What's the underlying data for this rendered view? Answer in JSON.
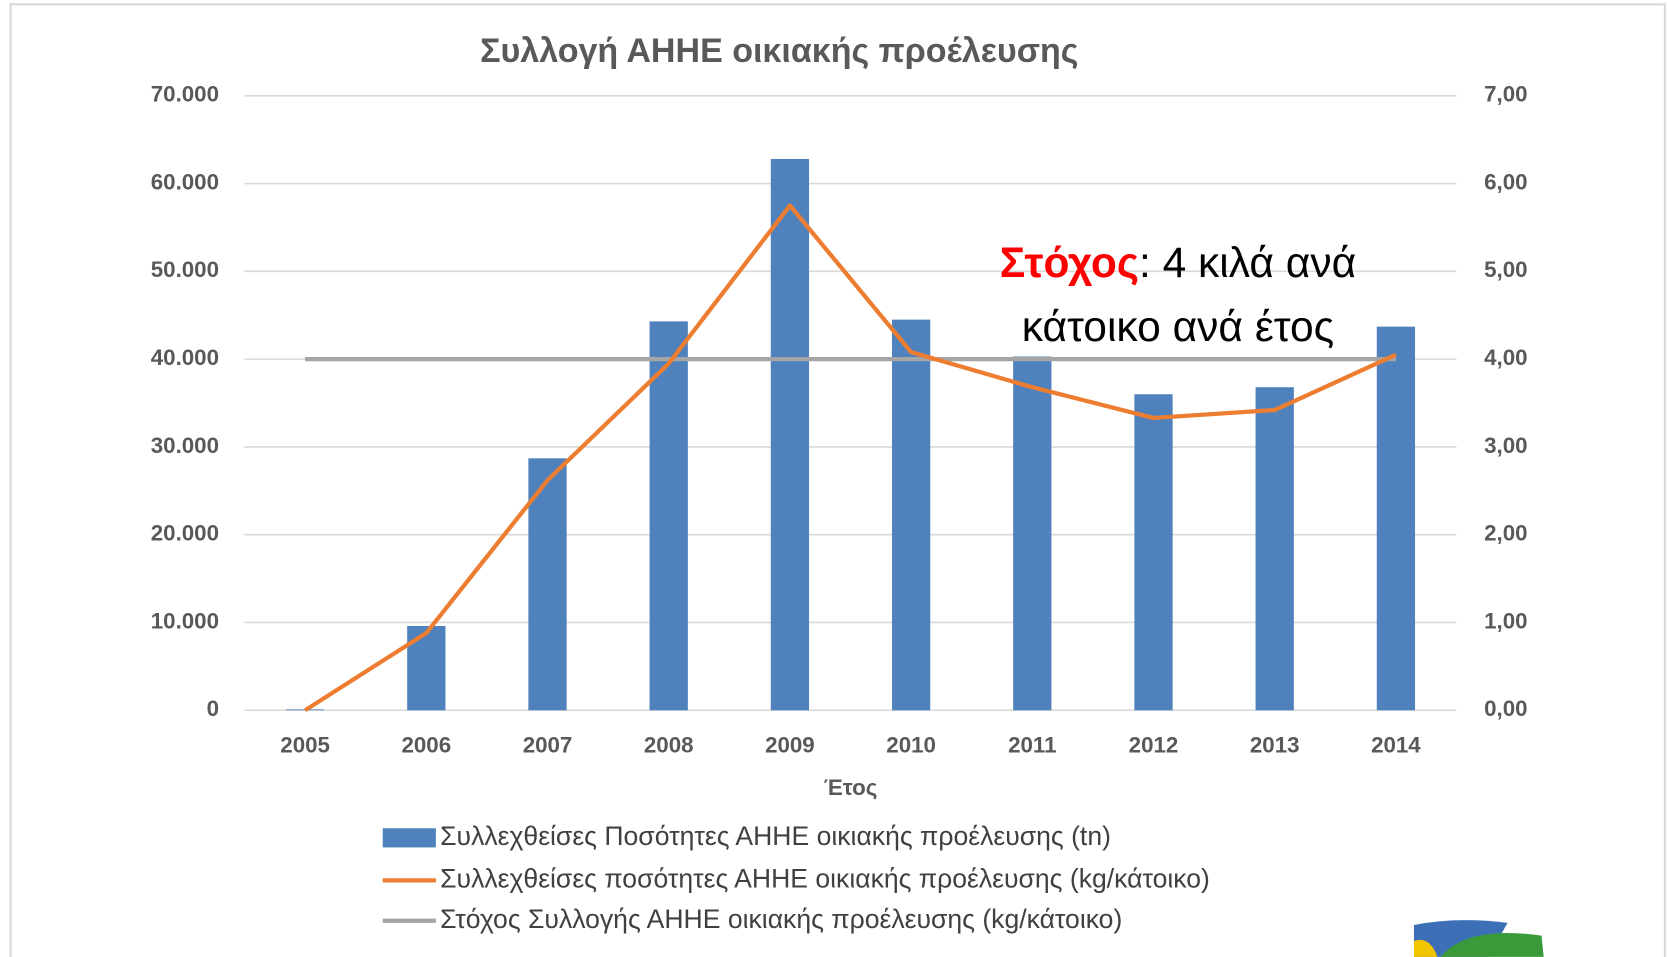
{
  "chart_data": {
    "type": "bar-line",
    "title": "Συλλογή ΑΗΗΕ οικιακής προέλευσης",
    "x_label": "Έτος",
    "categories": [
      "2005",
      "2006",
      "2007",
      "2008",
      "2009",
      "2010",
      "2011",
      "2012",
      "2013",
      "2014"
    ],
    "series": [
      {
        "name": "Συλλεχθείσες Ποσότητες ΑΗΗΕ οικιακής προέλευσης (tn)",
        "type": "bar",
        "axis": "y",
        "color": "#4f81bd",
        "values": [
          100,
          9600,
          28700,
          44300,
          62800,
          44500,
          40300,
          36000,
          36800,
          43700
        ]
      },
      {
        "name": "Συλλεχθείσες ποσότητες ΑΗΗΕ οικιακής προέλευσης (kg/κάτοικο)",
        "type": "line",
        "axis": "y2",
        "color": "#ed7d31",
        "values": [
          0.0,
          0.88,
          2.62,
          3.95,
          5.75,
          4.08,
          3.68,
          3.33,
          3.42,
          4.05
        ]
      },
      {
        "name": "Στόχος Συλλογής ΑΗΗΕ οικιακής προέλευσης (kg/κάτοικο)",
        "type": "line",
        "axis": "y2",
        "color": "#a5a5a5",
        "values": [
          4,
          4,
          4,
          4,
          4,
          4,
          4,
          4,
          4,
          4
        ]
      }
    ],
    "ylim": [
      0,
      70000
    ],
    "yticks": [
      0,
      {
        "value": 10000,
        "label": "10.000"
      },
      {
        "value": 20000,
        "label": "20.000"
      },
      {
        "value": 30000,
        "label": "30.000"
      },
      {
        "value": 40000,
        "label": "40.000"
      },
      {
        "value": 50000,
        "label": "50.000"
      },
      {
        "value": 60000,
        "label": "60.000"
      },
      {
        "value": 70000,
        "label": "70.000"
      }
    ],
    "y2lim": [
      0,
      7
    ],
    "y2ticks": [
      {
        "value": 0,
        "label": "0,00"
      },
      {
        "value": 1,
        "label": "1,00"
      },
      {
        "value": 2,
        "label": "2,00"
      },
      {
        "value": 3,
        "label": "3,00"
      },
      {
        "value": 4,
        "label": "4,00"
      },
      {
        "value": 5,
        "label": "5,00"
      },
      {
        "value": 6,
        "label": "6,00"
      },
      {
        "value": 7,
        "label": "7,00"
      }
    ],
    "grid": true,
    "legend": "bottom",
    "annotation": {
      "highlight": "Στόχος",
      "text": ": 4 κιλά ανά",
      "text2": "κάτοικο ανά έτος"
    }
  }
}
